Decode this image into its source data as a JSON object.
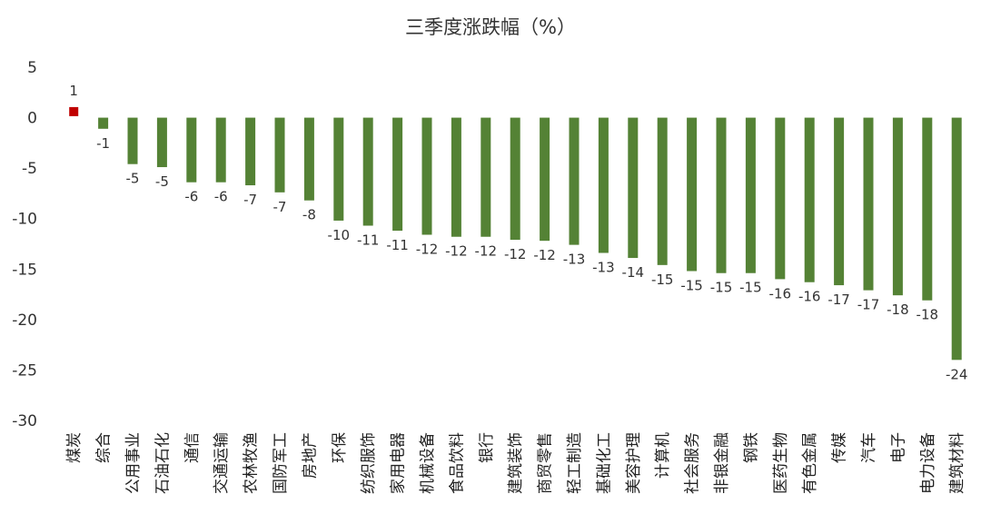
{
  "chart_data": {
    "type": "bar",
    "title": "三季度涨跌幅（%）",
    "xlabel": "",
    "ylabel": "",
    "ylim": [
      -30,
      5
    ],
    "yticks": [
      5,
      0,
      -5,
      -10,
      -15,
      -20,
      -25,
      -30
    ],
    "grid": false,
    "legend": "none",
    "colors": {
      "positive": "#C00000",
      "negative": "#548235"
    },
    "categories": [
      "煤炭",
      "综合",
      "公用事业",
      "石油石化",
      "通信",
      "交通运输",
      "农林牧渔",
      "国防军工",
      "房地产",
      "环保",
      "纺织服饰",
      "家用电器",
      "机械设备",
      "食品饮料",
      "银行",
      "建筑装饰",
      "商贸零售",
      "轻工制造",
      "基础化工",
      "美容护理",
      "计算机",
      "社会服务",
      "非银金融",
      "钢铁",
      "医药生物",
      "有色金属",
      "传媒",
      "汽车",
      "电子",
      "电力设备",
      "建筑材料"
    ],
    "values": [
      0.6,
      -1.1,
      -4.6,
      -4.9,
      -6.4,
      -6.4,
      -6.7,
      -7.4,
      -8.2,
      -10.2,
      -10.7,
      -11.2,
      -11.6,
      -11.8,
      -11.8,
      -12.1,
      -12.2,
      -12.6,
      -13.4,
      -13.9,
      -14.6,
      -15.2,
      -15.4,
      -15.4,
      -16.0,
      -16.3,
      -16.6,
      -17.1,
      -17.6,
      -18.1,
      -24.0
    ],
    "data_labels": [
      "1",
      "-1",
      "-5",
      "-5",
      "-6",
      "-6",
      "-7",
      "-7",
      "-8",
      "-10",
      "-11",
      "-11",
      "-12",
      "-12",
      "-12",
      "-12",
      "-12",
      "-13",
      "-13",
      "-14",
      "-15",
      "-15",
      "-15",
      "-15",
      "-16",
      "-16",
      "-17",
      "-17",
      "-18",
      "-18",
      "-24"
    ]
  }
}
